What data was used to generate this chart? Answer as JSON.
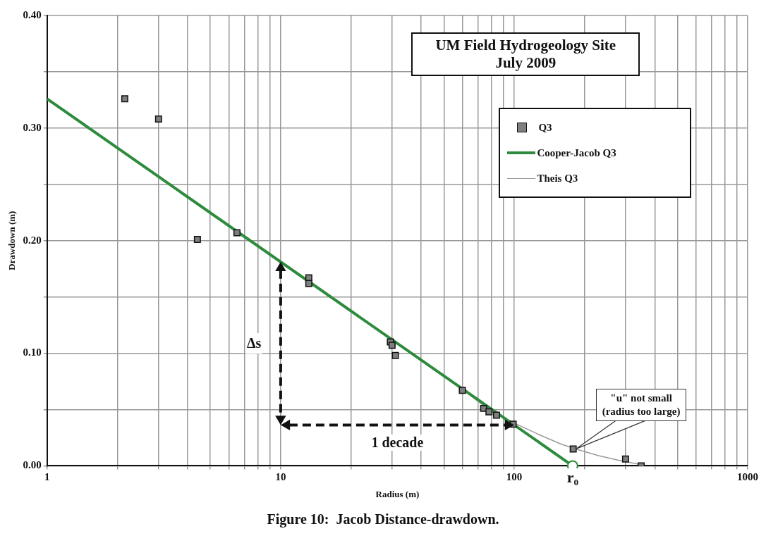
{
  "chart_data": {
    "type": "scatter",
    "title": "UM Field Hydrogeology Site",
    "subtitle": "July 2009",
    "xlabel": "Radius (m)",
    "ylabel": "Drawdown (m)",
    "log": "x",
    "grid": true,
    "legend": "top right",
    "xlim": [
      1,
      1000
    ],
    "ylim": [
      0,
      0.4
    ],
    "xticks": [
      1,
      {
        "value": 2,
        "label": null
      },
      {
        "value": 3,
        "label": null
      },
      {
        "value": 4,
        "label": null
      },
      {
        "value": 5,
        "label": null
      },
      {
        "value": 6,
        "label": null
      },
      {
        "value": 7,
        "label": null
      },
      {
        "value": 8,
        "label": null
      },
      {
        "value": 9,
        "label": null
      },
      10,
      {
        "value": 20,
        "label": null
      },
      {
        "value": 30,
        "label": null
      },
      {
        "value": 40,
        "label": null
      },
      {
        "value": 50,
        "label": null
      },
      {
        "value": 60,
        "label": null
      },
      {
        "value": 70,
        "label": null
      },
      {
        "value": 80,
        "label": null
      },
      {
        "value": 90,
        "label": null
      },
      100,
      {
        "value": 200,
        "label": null
      },
      {
        "value": 300,
        "label": null
      },
      {
        "value": 400,
        "label": null
      },
      {
        "value": 500,
        "label": null
      },
      {
        "value": 600,
        "label": null
      },
      {
        "value": 700,
        "label": null
      },
      {
        "value": 800,
        "label": null
      },
      {
        "value": 900,
        "label": null
      },
      1000
    ],
    "yticks": [
      {
        "value": 0,
        "label": "0.00"
      },
      {
        "value": 0.05,
        "label": null
      },
      {
        "value": 0.1,
        "label": "0.10"
      },
      {
        "value": 0.15,
        "label": null
      },
      {
        "value": 0.2,
        "label": "0.20"
      },
      {
        "value": 0.25,
        "label": null
      },
      {
        "value": 0.3,
        "label": "0.30"
      },
      {
        "value": 0.35,
        "label": null
      },
      {
        "value": 0.4,
        "label": "0.40"
      }
    ],
    "series": [
      {
        "name": "Q3",
        "type": "scatter",
        "marker": "square",
        "color": "#7f7f7f",
        "x": [
          2.15,
          3.0,
          4.4,
          6.5,
          13.2,
          13.2,
          29.5,
          30,
          31,
          60,
          74,
          78,
          84,
          99,
          179,
          300,
          350
        ],
        "values": [
          0.326,
          0.308,
          0.201,
          0.207,
          0.167,
          0.162,
          0.11,
          0.107,
          0.098,
          0.067,
          0.051,
          0.048,
          0.045,
          0.037,
          0.015,
          0.006,
          0.0
        ]
      },
      {
        "name": "Cooper-Jacob Q3",
        "type": "line",
        "color": "#2e8b3e",
        "x": [
          1,
          178
        ],
        "values": [
          0.326,
          0.0
        ]
      },
      {
        "name": "Theis Q3",
        "type": "line",
        "color": "#9a9a9a",
        "x": [
          60,
          80,
          100,
          130,
          160,
          190,
          230,
          280,
          350
        ],
        "values": [
          0.068,
          0.048,
          0.038,
          0.027,
          0.019,
          0.014,
          0.009,
          0.005,
          0.001
        ]
      }
    ],
    "annotations": [
      "Δs",
      "1 decade",
      {
        "text": "r₀",
        "x": 178,
        "y": 0
      },
      {
        "text": "\"u\" not small\n(radius too large)",
        "x": 179,
        "y": 0.015
      },
      "Figure 10:  Jacob Distance-drawdown."
    ]
  }
}
